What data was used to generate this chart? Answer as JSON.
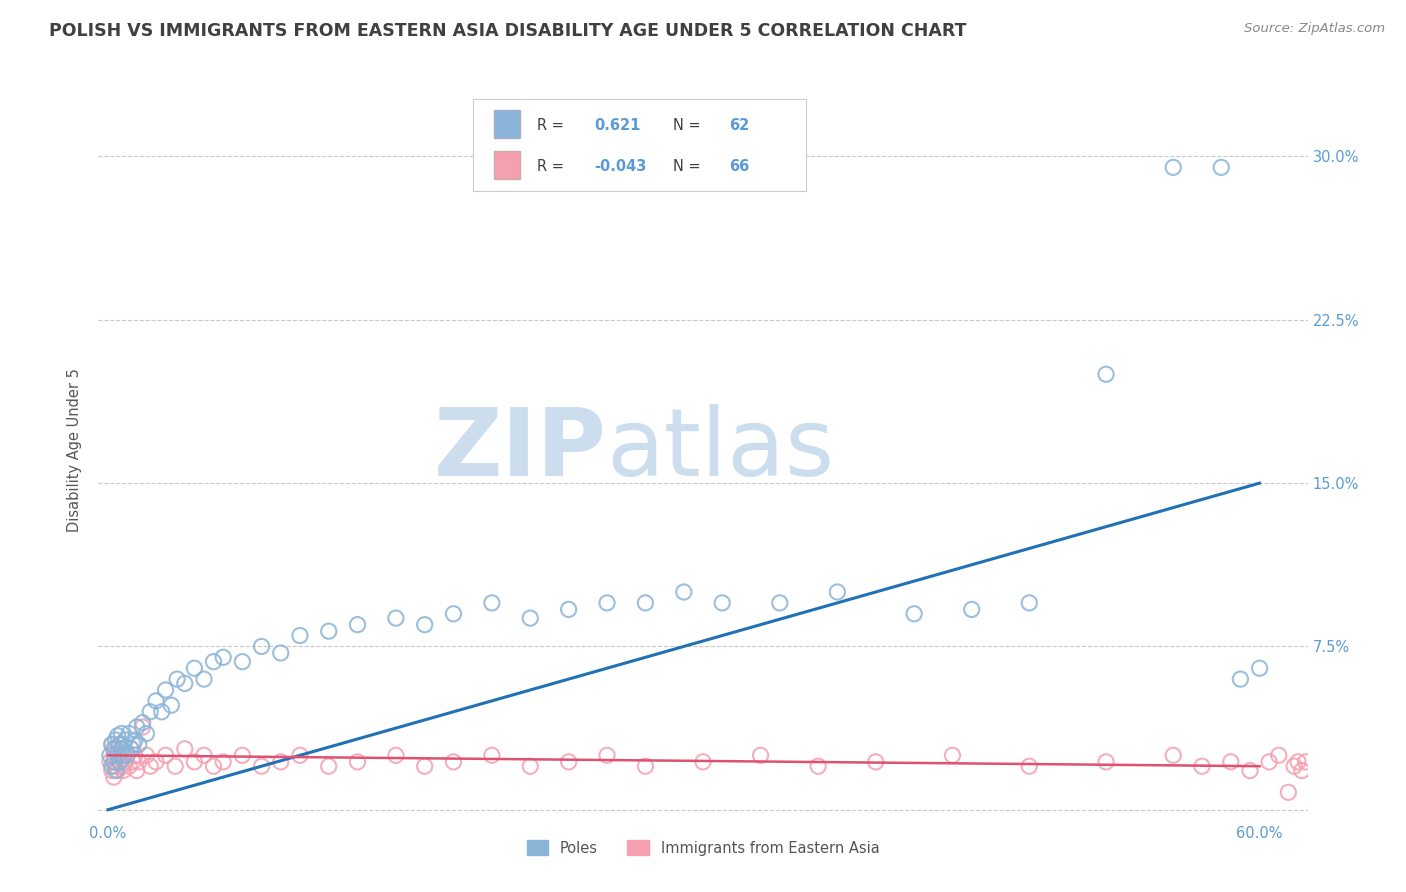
{
  "title": "POLISH VS IMMIGRANTS FROM EASTERN ASIA DISABILITY AGE UNDER 5 CORRELATION CHART",
  "source": "Source: ZipAtlas.com",
  "ylabel": "Disability Age Under 5",
  "xlim": [
    -0.005,
    0.625
  ],
  "ylim": [
    -0.005,
    0.335
  ],
  "yticks": [
    0.0,
    0.075,
    0.15,
    0.225,
    0.3
  ],
  "ytick_labels": [
    "",
    "7.5%",
    "15.0%",
    "22.5%",
    "30.0%"
  ],
  "xticks": [
    0.0,
    0.1,
    0.2,
    0.3,
    0.4,
    0.5,
    0.6
  ],
  "xtick_labels": [
    "0.0%",
    "",
    "",
    "",
    "",
    "",
    "60.0%"
  ],
  "blue_color": "#8ab4d8",
  "pink_color": "#f4a0b0",
  "blue_R": "0.621",
  "blue_N": "62",
  "pink_R": "-0.043",
  "pink_N": "66",
  "blue_scatter_x": [
    0.001,
    0.002,
    0.002,
    0.003,
    0.003,
    0.004,
    0.004,
    0.005,
    0.005,
    0.006,
    0.006,
    0.007,
    0.007,
    0.008,
    0.008,
    0.009,
    0.01,
    0.011,
    0.012,
    0.013,
    0.014,
    0.015,
    0.016,
    0.018,
    0.02,
    0.022,
    0.025,
    0.028,
    0.03,
    0.033,
    0.036,
    0.04,
    0.045,
    0.05,
    0.055,
    0.06,
    0.07,
    0.08,
    0.09,
    0.1,
    0.115,
    0.13,
    0.15,
    0.165,
    0.18,
    0.2,
    0.22,
    0.24,
    0.26,
    0.28,
    0.3,
    0.32,
    0.35,
    0.38,
    0.42,
    0.45,
    0.48,
    0.52,
    0.555,
    0.58,
    0.59,
    0.6
  ],
  "blue_scatter_y": [
    0.025,
    0.03,
    0.02,
    0.028,
    0.022,
    0.032,
    0.018,
    0.026,
    0.034,
    0.022,
    0.03,
    0.028,
    0.035,
    0.025,
    0.03,
    0.032,
    0.025,
    0.035,
    0.028,
    0.03,
    0.032,
    0.038,
    0.03,
    0.04,
    0.035,
    0.045,
    0.05,
    0.045,
    0.055,
    0.048,
    0.06,
    0.058,
    0.065,
    0.06,
    0.068,
    0.07,
    0.068,
    0.075,
    0.072,
    0.08,
    0.082,
    0.085,
    0.088,
    0.085,
    0.09,
    0.095,
    0.088,
    0.092,
    0.095,
    0.095,
    0.1,
    0.095,
    0.095,
    0.1,
    0.09,
    0.092,
    0.095,
    0.2,
    0.295,
    0.295,
    0.06,
    0.065
  ],
  "pink_scatter_x": [
    0.001,
    0.002,
    0.002,
    0.003,
    0.003,
    0.004,
    0.004,
    0.005,
    0.005,
    0.006,
    0.006,
    0.007,
    0.007,
    0.008,
    0.008,
    0.009,
    0.01,
    0.011,
    0.012,
    0.013,
    0.014,
    0.015,
    0.016,
    0.018,
    0.02,
    0.022,
    0.025,
    0.03,
    0.035,
    0.04,
    0.045,
    0.05,
    0.055,
    0.06,
    0.07,
    0.08,
    0.09,
    0.1,
    0.115,
    0.13,
    0.15,
    0.165,
    0.18,
    0.2,
    0.22,
    0.24,
    0.26,
    0.28,
    0.31,
    0.34,
    0.37,
    0.4,
    0.44,
    0.48,
    0.52,
    0.555,
    0.57,
    0.585,
    0.595,
    0.605,
    0.61,
    0.615,
    0.618,
    0.62,
    0.622,
    0.624
  ],
  "pink_scatter_y": [
    0.022,
    0.018,
    0.03,
    0.025,
    0.015,
    0.028,
    0.02,
    0.025,
    0.018,
    0.03,
    0.022,
    0.02,
    0.028,
    0.025,
    0.018,
    0.022,
    0.025,
    0.02,
    0.028,
    0.022,
    0.025,
    0.018,
    0.022,
    0.038,
    0.025,
    0.02,
    0.022,
    0.025,
    0.02,
    0.028,
    0.022,
    0.025,
    0.02,
    0.022,
    0.025,
    0.02,
    0.022,
    0.025,
    0.02,
    0.022,
    0.025,
    0.02,
    0.022,
    0.025,
    0.02,
    0.022,
    0.025,
    0.02,
    0.022,
    0.025,
    0.02,
    0.022,
    0.025,
    0.02,
    0.022,
    0.025,
    0.02,
    0.022,
    0.018,
    0.022,
    0.025,
    0.008,
    0.02,
    0.022,
    0.018,
    0.022
  ],
  "blue_line_x": [
    0.0,
    0.6
  ],
  "blue_line_y": [
    0.0,
    0.15
  ],
  "pink_line_x": [
    0.0,
    0.6
  ],
  "pink_line_y": [
    0.025,
    0.02
  ],
  "watermark_zip": "ZIP",
  "watermark_atlas": "atlas",
  "watermark_color": "#ccdded",
  "legend_labels": [
    "Poles",
    "Immigrants from Eastern Asia"
  ],
  "background_color": "#ffffff",
  "grid_color": "#c8c8c8",
  "title_color": "#404040",
  "tick_color": "#5b9bd5",
  "legend_R_color": "#5b9bd5",
  "legend_text_color": "#404040"
}
